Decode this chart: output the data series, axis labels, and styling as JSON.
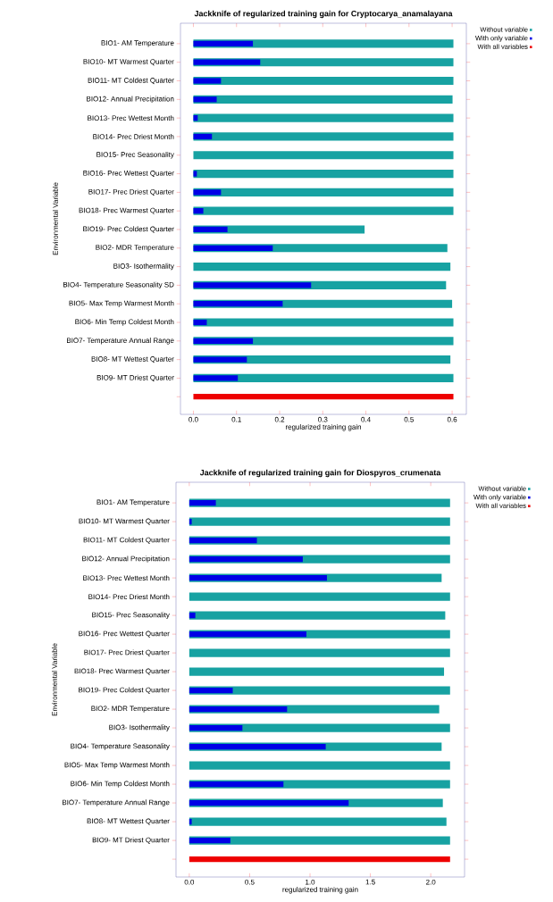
{
  "chart_data": [
    {
      "type": "bar",
      "orientation": "horizontal",
      "title": "Jackknife of regularized training gain for Cryptocarya_anamalayana",
      "xlabel": "regularized training gain",
      "ylabel": "Environmental Variable",
      "categories": [
        "BIO1- AM Temperature",
        "BIO10- MT Warmest Quarter",
        "BIO11- MT Coldest Quarter",
        "BIO12- Annual Precipitation",
        "BIO13- Prec Wettest Month",
        "BIO14- Prec Driest Month",
        "BIO15- Prec Seasonality",
        "BIO16- Prec Wettest Quarter",
        "BIO17- Prec Driest Quarter",
        "BIO18- Prec Warmest Quarter",
        "BIO19- Prec Coldest Quarter",
        "BIO2- MDR Temperature",
        "BIO3- Isothermality",
        "BIO4- Temperature Seasonality SD",
        "BIO5- Max Temp Warmest Month",
        "BIO6- Min Temp Coldest Month",
        "BIO7- Temperature Annual Range",
        "BIO8- MT Wettest Quarter",
        "BIO9- MT Driest Quarter",
        null
      ],
      "series": [
        {
          "name": "Without variable",
          "color": "#17a2a2",
          "values": [
            0.603,
            0.603,
            0.603,
            0.601,
            0.603,
            0.603,
            0.603,
            0.603,
            0.603,
            0.603,
            0.397,
            0.589,
            0.596,
            0.586,
            0.6,
            0.603,
            0.603,
            0.596,
            0.603,
            null
          ]
        },
        {
          "name": "With only variable",
          "color": "#0000e6",
          "values": [
            0.138,
            0.155,
            0.064,
            0.054,
            0.01,
            0.043,
            0,
            0.008,
            0.064,
            0.023,
            0.079,
            0.184,
            0,
            0.273,
            0.207,
            0.031,
            0.138,
            0.124,
            0.103,
            null
          ]
        },
        {
          "name": "With all variables",
          "color": "#ee0000",
          "values": [
            null,
            null,
            null,
            null,
            null,
            null,
            null,
            null,
            null,
            null,
            null,
            null,
            null,
            null,
            null,
            null,
            null,
            null,
            null,
            0.603
          ]
        }
      ],
      "xlim": [
        -0.03,
        0.633
      ],
      "xticks": [
        {
          "value": 0,
          "label": "0.0"
        },
        0.1,
        0.2,
        0.3,
        0.4,
        0.5,
        0.6
      ],
      "legend": "top right"
    },
    {
      "type": "bar",
      "orientation": "horizontal",
      "title": "Jackknife of regularized training gain for Diospyros_crumenata",
      "xlabel": "regularized training gain",
      "ylabel": "Environmental Variable",
      "categories": [
        "BIO1- AM Temperature",
        "BIO10- MT Warmest Quarter",
        "BIO11- MT Coldest Quarter",
        "BIO12- Annual Precipitation",
        "BIO13- Prec Wettest Month",
        "BIO14- Prec Driest Month",
        "BIO15- Prec Seasonality",
        "BIO16- Prec Wettest Quarter",
        "BIO17- Prec Driest Quarter",
        "BIO18- Prec Warmest Quarter",
        "BIO19- Prec Coldest Quarter",
        "BIO2- MDR Temperature",
        "BIO3- Isothermality",
        "BIO4- Temperature Seasonality",
        "BIO5- Max Temp Warmest Month",
        "BIO6- Min Temp Coldest Month",
        "BIO7- Temperature Annual Range",
        "BIO8- MT Wettest Quarter",
        "BIO9- MT Driest Quarter",
        null
      ],
      "series": [
        {
          "name": "Without variable",
          "color": "#17a2a2",
          "values": [
            2.16,
            2.16,
            2.16,
            2.16,
            2.09,
            2.16,
            2.12,
            2.16,
            2.16,
            2.11,
            2.16,
            2.07,
            2.16,
            2.09,
            2.16,
            2.16,
            2.1,
            2.13,
            2.16,
            null
          ]
        },
        {
          "name": "With only variable",
          "color": "#0000e6",
          "values": [
            0.22,
            0.02,
            0.56,
            0.94,
            1.14,
            0,
            0.05,
            0.97,
            0,
            0,
            0.36,
            0.81,
            0.44,
            1.13,
            0,
            0.78,
            1.32,
            0.02,
            0.34,
            null
          ]
        },
        {
          "name": "With all variables",
          "color": "#ee0000",
          "values": [
            null,
            null,
            null,
            null,
            null,
            null,
            null,
            null,
            null,
            null,
            null,
            null,
            null,
            null,
            null,
            null,
            null,
            null,
            null,
            2.16
          ]
        }
      ],
      "xlim": [
        -0.11,
        2.28
      ],
      "xticks": [
        {
          "value": 0,
          "label": "0.0"
        },
        0.5,
        {
          "value": 1,
          "label": "1.0"
        },
        1.5,
        {
          "value": 2,
          "label": "2.0"
        }
      ],
      "legend": "top right"
    }
  ]
}
